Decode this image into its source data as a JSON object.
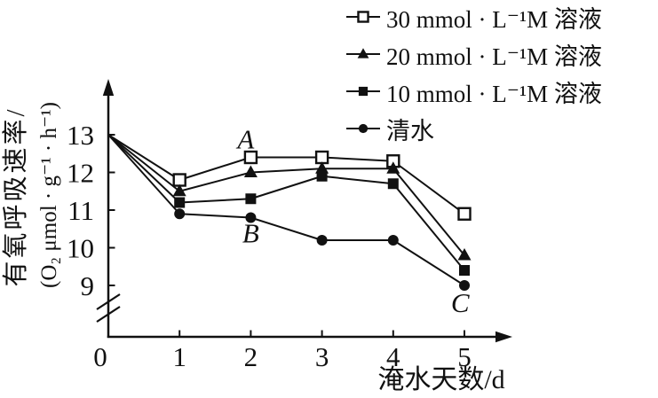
{
  "figure": {
    "background": "#ffffff",
    "ink_color": "#111111"
  },
  "chart_data": {
    "type": "line",
    "title": "",
    "xlabel": "淹水天数/d",
    "ylabel_line1": "有氧呼吸速率/",
    "ylabel_line2": "(O₂ μmol · g⁻¹ · h⁻¹)",
    "x": [
      0,
      1,
      2,
      3,
      4,
      5
    ],
    "xticks": [
      0,
      1,
      2,
      3,
      4,
      5
    ],
    "yticks": [
      13,
      12,
      11,
      10,
      9
    ],
    "ylim_display": [
      9,
      13
    ],
    "xlim": [
      0,
      5
    ],
    "axis_break_on_y": true,
    "grid": false,
    "legend_position": "top-right",
    "series": [
      {
        "name": "30 mmol · L⁻¹M 溶液",
        "marker": "open-square",
        "color": "#111111",
        "values": [
          13,
          11.8,
          12.4,
          12.4,
          12.3,
          10.9
        ]
      },
      {
        "name": "20 mmol · L⁻¹M 溶液",
        "marker": "filled-triangle",
        "color": "#111111",
        "values": [
          13,
          11.5,
          12.0,
          12.1,
          12.1,
          9.8
        ]
      },
      {
        "name": "10 mmol · L⁻¹M 溶液",
        "marker": "filled-square",
        "color": "#111111",
        "values": [
          13,
          11.2,
          11.3,
          11.9,
          11.7,
          9.4
        ]
      },
      {
        "name": "清水",
        "marker": "filled-circle",
        "color": "#111111",
        "values": [
          13,
          10.9,
          10.8,
          10.2,
          10.2,
          9.0
        ]
      }
    ],
    "annotations": [
      {
        "text": "A",
        "x": 1.93,
        "y": 12.9
      },
      {
        "text": "B",
        "x": 2.0,
        "y": 10.4
      },
      {
        "text": "C",
        "x": 4.94,
        "y": 8.55
      }
    ]
  }
}
